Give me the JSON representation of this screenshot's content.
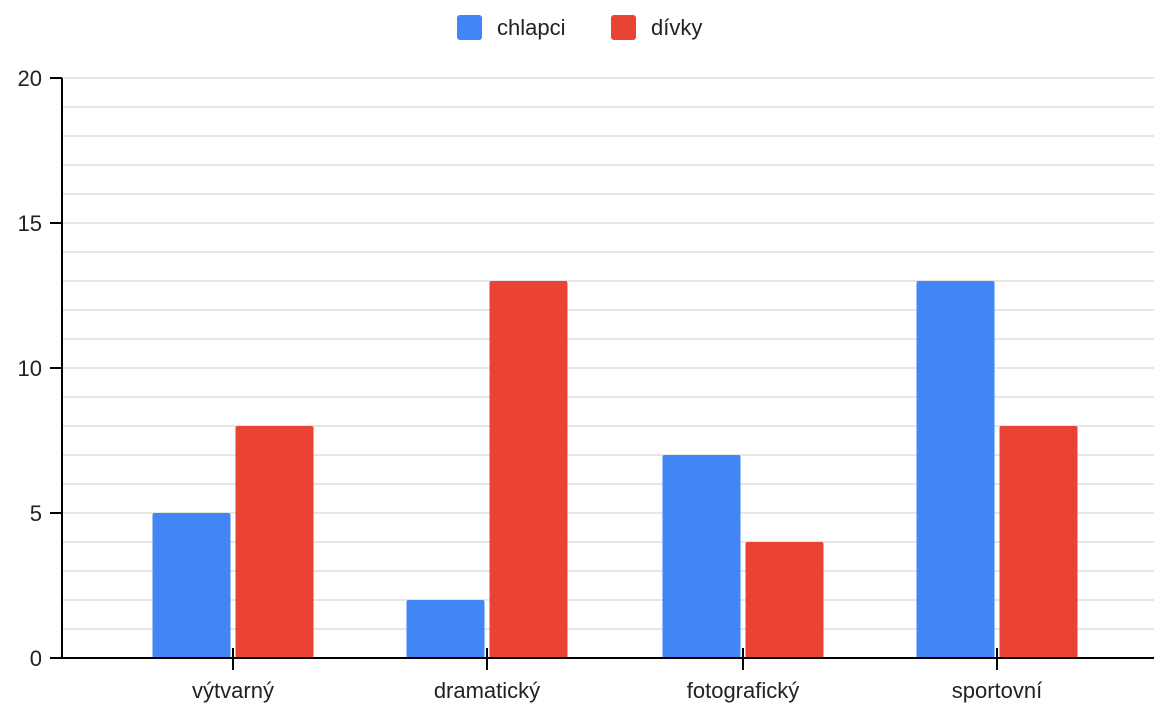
{
  "chart_data": {
    "type": "bar",
    "categories": [
      "výtvarný",
      "dramatický",
      "fotografický",
      "sportovní"
    ],
    "series": [
      {
        "name": "chlapci",
        "values": [
          5,
          2,
          7,
          13
        ],
        "color": "#4285f4"
      },
      {
        "name": "dívky",
        "values": [
          8,
          13,
          4,
          8
        ],
        "color": "#ea4335"
      }
    ],
    "ylim": [
      0,
      20
    ],
    "yticks": [
      0,
      5,
      10,
      15,
      20
    ],
    "minor_grid_step": 1,
    "grid": true,
    "legend_position": "top-center",
    "title": "",
    "xlabel": "",
    "ylabel": ""
  }
}
